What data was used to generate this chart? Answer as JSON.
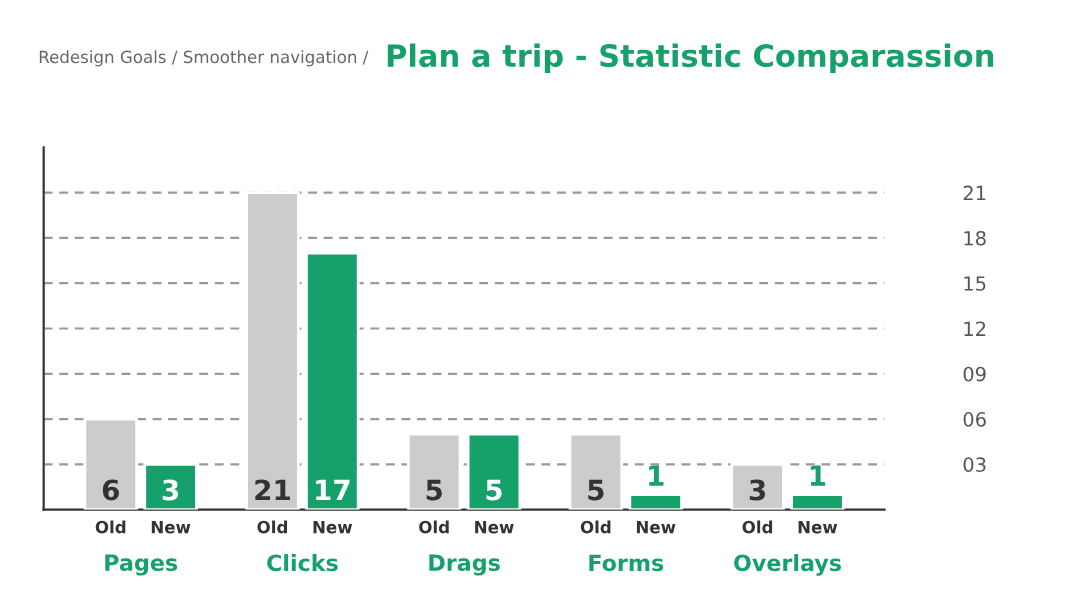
{
  "chart_data": {
    "type": "bar",
    "title": "Plan a trip - Statistic Comparassion",
    "subtitle": "Redesign Goals / Smoother navigation /",
    "categories": [
      "Pages",
      "Clicks",
      "Drags",
      "Forms",
      "Overlays"
    ],
    "series": [
      {
        "name": "Old",
        "color": "#cccccc",
        "values": [
          6,
          21,
          5,
          5,
          3
        ]
      },
      {
        "name": "New",
        "color": "#16a06a",
        "values": [
          3,
          17,
          5,
          1,
          1
        ]
      }
    ],
    "ylim": [
      0,
      24
    ],
    "yticks": [
      {
        "value": 3,
        "label": "03"
      },
      {
        "value": 6,
        "label": "06"
      },
      {
        "value": 9,
        "label": "09"
      },
      {
        "value": 12,
        "label": "12"
      },
      {
        "value": 15,
        "label": "15"
      },
      {
        "value": 18,
        "label": "18"
      },
      {
        "value": 21,
        "label": "21"
      }
    ],
    "grid": "y",
    "data_labels": true,
    "legend": false
  }
}
